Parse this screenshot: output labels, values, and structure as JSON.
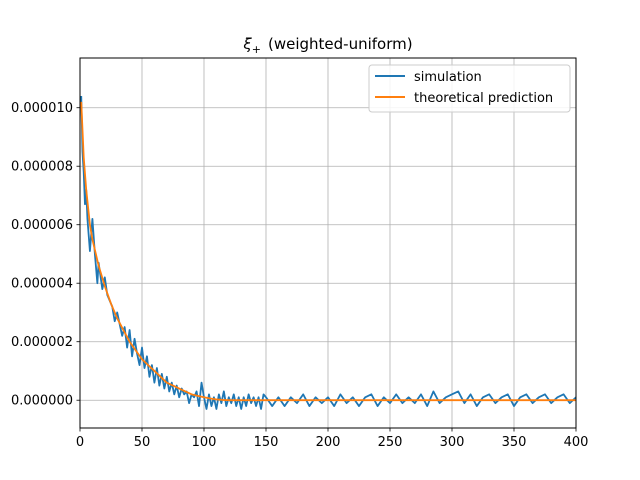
{
  "chart_data": {
    "type": "line",
    "title_symbol": "ξ",
    "title_subscript": "+",
    "title_rest": "(weighted-uniform)",
    "xlabel": "",
    "ylabel": "",
    "xlim": [
      0,
      400
    ],
    "ylim": [
      -9.5e-07,
      1.17e-05
    ],
    "x_ticks": [
      0,
      50,
      100,
      150,
      200,
      250,
      300,
      350,
      400
    ],
    "x_tick_labels": [
      "0",
      "50",
      "100",
      "150",
      "200",
      "250",
      "300",
      "350",
      "400"
    ],
    "y_ticks": [
      0,
      2e-06,
      4e-06,
      6e-06,
      8e-06,
      1e-05
    ],
    "y_tick_labels": [
      "0.000000",
      "0.000002",
      "0.000004",
      "0.000006",
      "0.000008",
      "0.000010"
    ],
    "grid": true,
    "legend_position": "top-right",
    "series": [
      {
        "name": "simulation",
        "color": "#1f77b4",
        "x": [
          1,
          2,
          3,
          4,
          5,
          6,
          8,
          10,
          12,
          14,
          15,
          16,
          17,
          18,
          20,
          22,
          24,
          26,
          28,
          30,
          32,
          34,
          36,
          38,
          40,
          42,
          44,
          46,
          48,
          50,
          52,
          54,
          56,
          58,
          60,
          62,
          64,
          66,
          68,
          70,
          72,
          74,
          76,
          78,
          80,
          82,
          84,
          86,
          88,
          90,
          92,
          94,
          96,
          98,
          100,
          102,
          104,
          106,
          108,
          110,
          112,
          114,
          116,
          118,
          120,
          122,
          124,
          126,
          128,
          130,
          132,
          134,
          136,
          138,
          140,
          142,
          144,
          146,
          148,
          150,
          155,
          160,
          165,
          170,
          175,
          180,
          185,
          190,
          195,
          200,
          205,
          210,
          215,
          220,
          225,
          230,
          235,
          240,
          245,
          250,
          255,
          260,
          265,
          270,
          275,
          280,
          285,
          290,
          295,
          300,
          305,
          310,
          315,
          320,
          325,
          330,
          335,
          340,
          345,
          350,
          355,
          360,
          365,
          370,
          375,
          380,
          385,
          390,
          395,
          400
        ],
        "values": [
          1.04e-05,
          8.5e-06,
          7.8e-06,
          6.7e-06,
          7.2e-06,
          6.2e-06,
          5.1e-06,
          6.2e-06,
          5e-06,
          4e-06,
          4.7e-06,
          4.4e-06,
          4.1e-06,
          3.8e-06,
          4.2e-06,
          3.6e-06,
          3.4e-06,
          3.2e-06,
          2.7e-06,
          3e-06,
          2.6e-06,
          2.2e-06,
          2.5e-06,
          1.8e-06,
          2.4e-06,
          1.5e-06,
          2.1e-06,
          1.6e-06,
          1.2e-06,
          1.8e-06,
          1.1e-06,
          1.5e-06,
          8e-07,
          1.2e-06,
          6e-07,
          1.1e-06,
          5e-07,
          9e-07,
          4e-07,
          8e-07,
          3e-07,
          6e-07,
          2e-07,
          5e-07,
          1e-07,
          4e-07,
          2e-07,
          3e-07,
          -1e-07,
          2e-07,
          1e-07,
          3e-07,
          -2e-07,
          6e-07,
          1e-07,
          -3e-07,
          2e-07,
          -2e-07,
          1e-07,
          -3e-07,
          2e-07,
          -1e-07,
          3e-07,
          -2e-07,
          1e-07,
          -1e-07,
          2e-07,
          -2e-07,
          1e-07,
          -3e-07,
          1e-07,
          -2e-07,
          2e-07,
          -1e-07,
          1e-07,
          -2e-07,
          1e-07,
          -3e-07,
          2e-07,
          1e-07,
          -2e-07,
          1e-07,
          -2e-07,
          1e-07,
          -1e-07,
          2e-07,
          -2e-07,
          1e-07,
          -1e-07,
          1e-07,
          -2e-07,
          2e-07,
          -1e-07,
          1e-07,
          -2e-07,
          1e-07,
          2e-07,
          -2e-07,
          1e-07,
          -1e-07,
          2e-07,
          -1e-07,
          1e-07,
          -1e-07,
          2e-07,
          -2e-07,
          3e-07,
          -1e-07,
          1e-07,
          2e-07,
          3e-07,
          -1e-07,
          2e-07,
          -2e-07,
          1e-07,
          2e-07,
          -1e-07,
          1e-07,
          2e-07,
          -2e-07,
          1e-07,
          2e-07,
          -1e-07,
          1e-07,
          2e-07,
          -1e-07,
          1e-07,
          2e-07,
          -1e-07,
          1e-07
        ]
      },
      {
        "name": "theoretical prediction",
        "color": "#ff7f0e",
        "x": [
          1,
          3,
          5,
          8,
          10,
          15,
          20,
          25,
          30,
          35,
          40,
          45,
          50,
          55,
          60,
          65,
          70,
          75,
          80,
          85,
          90,
          95,
          100,
          105,
          110,
          115,
          120,
          125,
          130,
          140,
          150,
          160,
          180,
          200,
          250,
          300,
          350,
          400
        ],
        "values": [
          1.02e-05,
          8.3e-06,
          7.2e-06,
          6e-06,
          5.5e-06,
          4.6e-06,
          3.9e-06,
          3.3e-06,
          2.8e-06,
          2.4e-06,
          2e-06,
          1.7e-06,
          1.4e-06,
          1.2e-06,
          1e-06,
          8e-07,
          6e-07,
          5e-07,
          4e-07,
          3e-07,
          2e-07,
          1.5e-07,
          1e-07,
          6e-08,
          3e-08,
          1e-08,
          0.0,
          0.0,
          0.0,
          0.0,
          0.0,
          0.0,
          0.0,
          0.0,
          0.0,
          0.0,
          0.0,
          0.0
        ]
      }
    ]
  }
}
